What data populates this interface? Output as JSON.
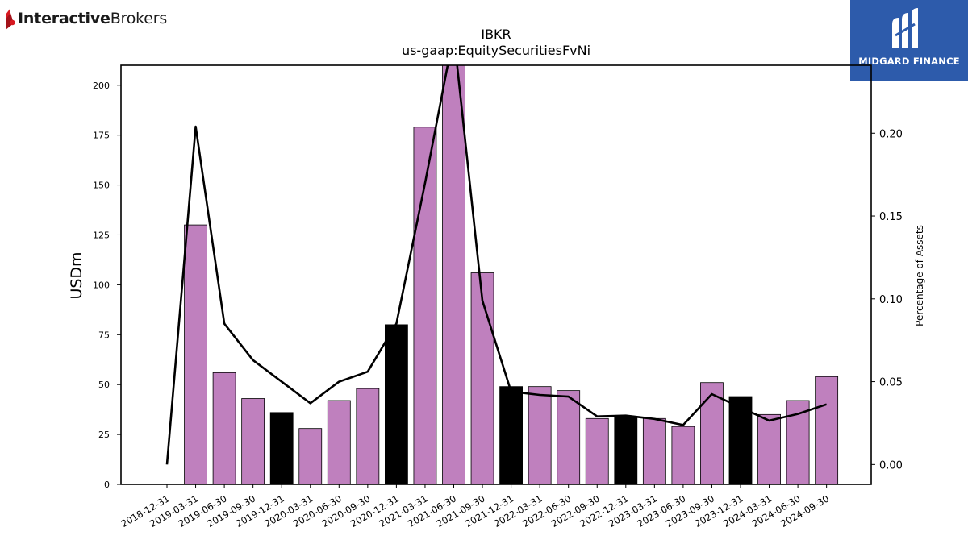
{
  "brand": {
    "name_bold": "Interactive",
    "name_regular": "Brokers"
  },
  "badge": {
    "name": "MIDGARD FINANCE",
    "color": "#2d5bab"
  },
  "chart_data": {
    "type": "bar",
    "title": "IBKR",
    "subtitle": "us-gaap:EquitySecuritiesFvNi",
    "ylabel": "USDm",
    "y2label": "Percentage of Assets",
    "ylim": [
      0,
      210
    ],
    "y2lim": [
      -0.012,
      0.241
    ],
    "yticks": [
      0,
      25,
      50,
      75,
      100,
      125,
      150,
      175,
      200
    ],
    "y2ticks": [
      "0.00",
      "0.05",
      "0.10",
      "0.15",
      "0.20"
    ],
    "categories": [
      "2018-12-31",
      "2019-03-31",
      "2019-06-30",
      "2019-09-30",
      "2019-12-31",
      "2020-03-31",
      "2020-06-30",
      "2020-09-30",
      "2020-12-31",
      "2021-03-31",
      "2021-06-30",
      "2021-09-30",
      "2021-12-31",
      "2022-03-31",
      "2022-06-30",
      "2022-09-30",
      "2022-12-31",
      "2023-03-31",
      "2023-06-30",
      "2023-09-30",
      "2023-12-31",
      "2024-03-31",
      "2024-06-30",
      "2024-09-30"
    ],
    "series": [
      {
        "values": [
          0,
          130,
          56,
          43,
          36,
          28,
          42,
          48,
          80,
          179,
          216,
          106,
          49,
          49,
          47,
          33,
          34,
          33,
          29,
          51,
          44,
          35,
          42,
          54
        ]
      },
      {
        "values": [
          0.0,
          0.204,
          0.085,
          0.063,
          0.05,
          0.037,
          0.05,
          0.056,
          0.085,
          0.17,
          0.26,
          0.099,
          0.044,
          0.042,
          0.041,
          0.029,
          0.0295,
          0.0275,
          0.0238,
          0.0425,
          0.0345,
          0.0265,
          0.0305,
          0.0363
        ]
      }
    ],
    "bar_colors": {
      "default": "#bf80be",
      "year_end": "#000000"
    },
    "line_color": "#000000"
  }
}
